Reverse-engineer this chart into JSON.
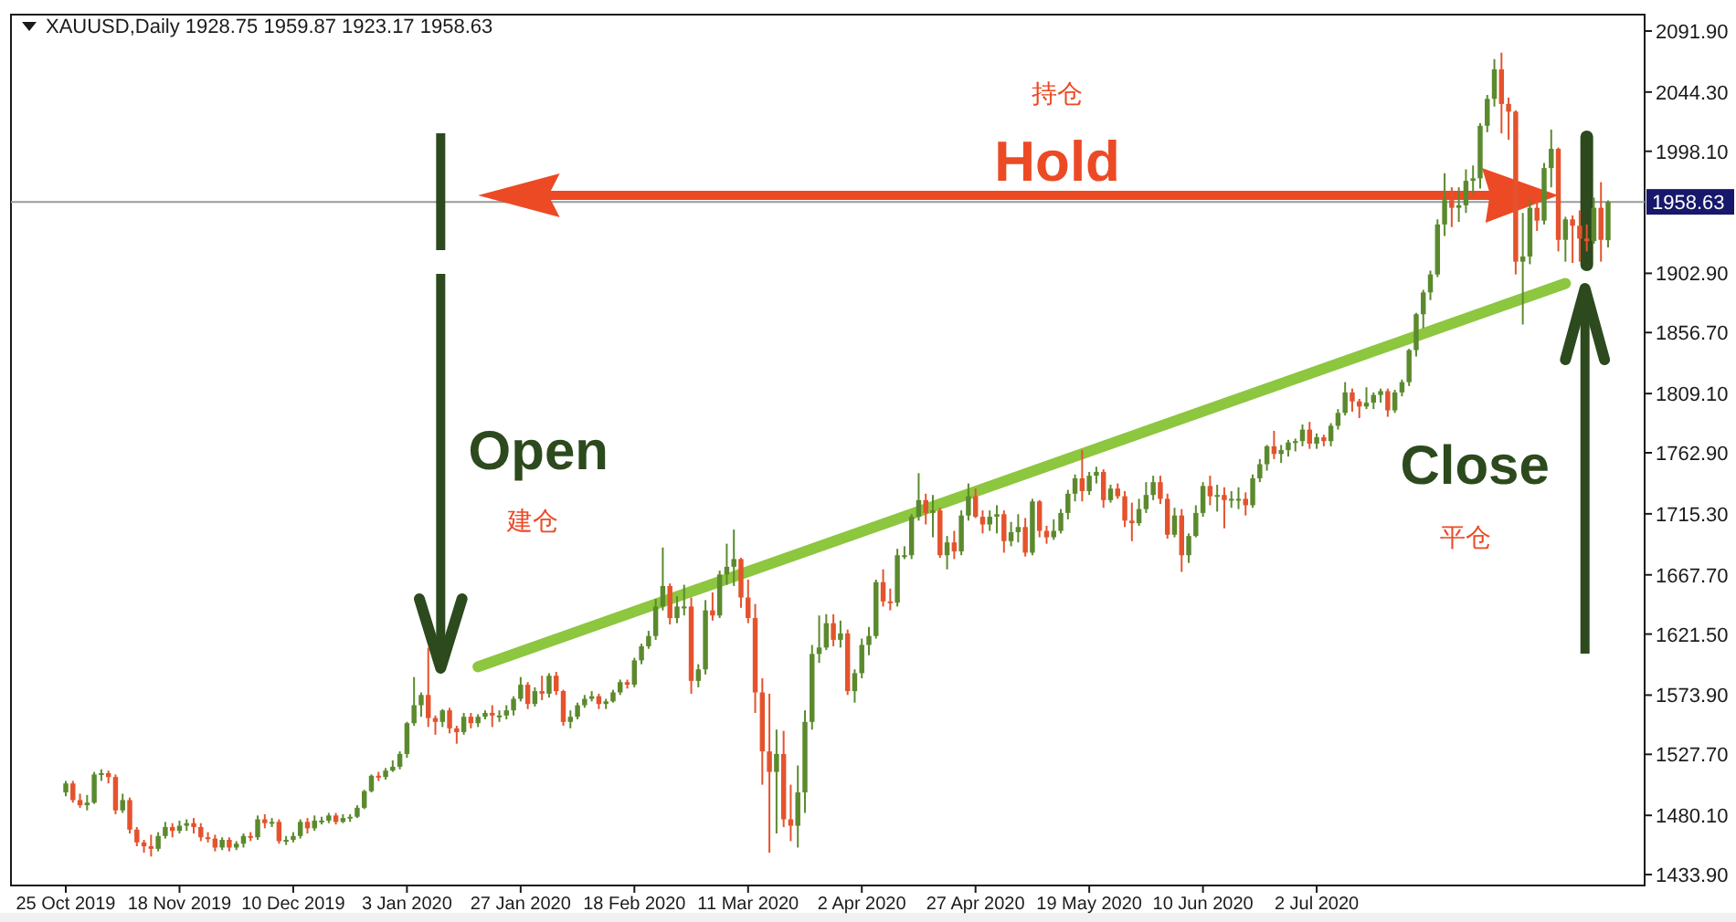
{
  "chart_data": {
    "type": "candlestick",
    "title": "XAUUSD,Daily  1928.75 1959.87 1923.17 1958.63",
    "categories": [
      "25 Oct 2019",
      null,
      null,
      null,
      null,
      null,
      null,
      null,
      null,
      null,
      null,
      null,
      null,
      null,
      null,
      null,
      "18 Nov 2019",
      null,
      null,
      null,
      null,
      null,
      null,
      null,
      null,
      null,
      null,
      null,
      null,
      null,
      null,
      null,
      "10 Dec 2019",
      null,
      null,
      null,
      null,
      null,
      null,
      null,
      null,
      null,
      null,
      null,
      null,
      null,
      null,
      null,
      "3 Jan 2020",
      null,
      null,
      null,
      null,
      null,
      null,
      null,
      null,
      null,
      null,
      null,
      null,
      null,
      null,
      null,
      "27 Jan 2020",
      null,
      null,
      null,
      null,
      null,
      null,
      null,
      null,
      null,
      null,
      null,
      null,
      null,
      null,
      null,
      "18 Feb 2020",
      null,
      null,
      null,
      null,
      null,
      null,
      null,
      null,
      null,
      null,
      null,
      null,
      null,
      null,
      null,
      "11 Mar 2020",
      null,
      null,
      null,
      null,
      null,
      null,
      null,
      null,
      null,
      null,
      null,
      null,
      null,
      null,
      null,
      "2 Apr 2020",
      null,
      null,
      null,
      null,
      null,
      null,
      null,
      null,
      null,
      null,
      null,
      null,
      null,
      null,
      null,
      "27 Apr 2020",
      null,
      null,
      null,
      null,
      null,
      null,
      null,
      null,
      null,
      null,
      null,
      null,
      null,
      null,
      null,
      "19 May 2020",
      null,
      null,
      null,
      null,
      null,
      null,
      null,
      null,
      null,
      null,
      null,
      null,
      null,
      null,
      null,
      "10 Jun 2020",
      null,
      null,
      null,
      null,
      null,
      null,
      null,
      null,
      null,
      null,
      null,
      null,
      null,
      null,
      null,
      "2 Jul 2020",
      null,
      null,
      null,
      null,
      null,
      null,
      null,
      null,
      null,
      null,
      null,
      null,
      null,
      null,
      null,
      null,
      null,
      null,
      null,
      null,
      null,
      null,
      null,
      null,
      null,
      null,
      null,
      null,
      null,
      null,
      null,
      null,
      null,
      null,
      null,
      null,
      null,
      null,
      null,
      null,
      null
    ],
    "ohlc": [
      [
        1498,
        1507,
        1495,
        1505
      ],
      [
        1505,
        1507,
        1490,
        1492
      ],
      [
        1492,
        1497,
        1486,
        1488
      ],
      [
        1488,
        1496,
        1484,
        1490
      ],
      [
        1490,
        1514,
        1489,
        1512
      ],
      [
        1512,
        1516,
        1507,
        1513
      ],
      [
        1513,
        1515,
        1505,
        1510
      ],
      [
        1510,
        1512,
        1481,
        1484
      ],
      [
        1484,
        1497,
        1482,
        1492
      ],
      [
        1492,
        1494,
        1466,
        1469
      ],
      [
        1469,
        1471,
        1456,
        1459
      ],
      [
        1459,
        1461,
        1451,
        1456
      ],
      [
        1456,
        1465,
        1448,
        1454
      ],
      [
        1454,
        1467,
        1452,
        1464
      ],
      [
        1464,
        1475,
        1462,
        1471
      ],
      [
        1471,
        1474,
        1463,
        1468
      ],
      [
        1468,
        1476,
        1466,
        1472
      ],
      [
        1472,
        1477,
        1468,
        1474
      ],
      [
        1474,
        1478,
        1466,
        1471
      ],
      [
        1471,
        1474,
        1460,
        1463
      ],
      [
        1463,
        1467,
        1459,
        1462
      ],
      [
        1462,
        1465,
        1452,
        1455
      ],
      [
        1455,
        1463,
        1453,
        1461
      ],
      [
        1461,
        1463,
        1452,
        1455
      ],
      [
        1455,
        1460,
        1453,
        1458
      ],
      [
        1458,
        1466,
        1455,
        1464
      ],
      [
        1464,
        1467,
        1460,
        1463
      ],
      [
        1463,
        1480,
        1461,
        1477
      ],
      [
        1477,
        1481,
        1470,
        1474
      ],
      [
        1474,
        1478,
        1471,
        1475
      ],
      [
        1475,
        1477,
        1458,
        1460
      ],
      [
        1460,
        1464,
        1457,
        1461
      ],
      [
        1461,
        1467,
        1459,
        1464
      ],
      [
        1464,
        1477,
        1462,
        1475
      ],
      [
        1475,
        1478,
        1466,
        1470
      ],
      [
        1470,
        1480,
        1468,
        1476
      ],
      [
        1476,
        1479,
        1473,
        1476
      ],
      [
        1476,
        1482,
        1474,
        1480
      ],
      [
        1480,
        1482,
        1473,
        1475
      ],
      [
        1475,
        1481,
        1474,
        1478
      ],
      [
        1478,
        1481,
        1475,
        1479
      ],
      [
        1479,
        1488,
        1478,
        1486
      ],
      [
        1486,
        1500,
        1485,
        1499
      ],
      [
        1499,
        1512,
        1498,
        1511
      ],
      [
        1511,
        1514,
        1507,
        1510
      ],
      [
        1510,
        1517,
        1508,
        1515
      ],
      [
        1515,
        1523,
        1514,
        1518
      ],
      [
        1518,
        1530,
        1516,
        1528
      ],
      [
        1528,
        1553,
        1525,
        1552
      ],
      [
        1552,
        1588,
        1550,
        1566
      ],
      [
        1566,
        1576,
        1557,
        1574
      ],
      [
        1574,
        1611,
        1549,
        1556
      ],
      [
        1556,
        1558,
        1543,
        1553
      ],
      [
        1553,
        1563,
        1549,
        1562
      ],
      [
        1562,
        1564,
        1544,
        1548
      ],
      [
        1548,
        1550,
        1536,
        1545
      ],
      [
        1545,
        1560,
        1543,
        1557
      ],
      [
        1557,
        1560,
        1548,
        1552
      ],
      [
        1552,
        1559,
        1549,
        1557
      ],
      [
        1557,
        1562,
        1555,
        1560
      ],
      [
        1560,
        1566,
        1549,
        1558
      ],
      [
        1558,
        1562,
        1553,
        1558
      ],
      [
        1558,
        1566,
        1555,
        1562
      ],
      [
        1562,
        1573,
        1558,
        1571
      ],
      [
        1571,
        1588,
        1569,
        1582
      ],
      [
        1582,
        1584,
        1563,
        1567
      ],
      [
        1567,
        1580,
        1565,
        1577
      ],
      [
        1577,
        1589,
        1570,
        1575
      ],
      [
        1575,
        1591,
        1572,
        1589
      ],
      [
        1589,
        1592,
        1574,
        1577
      ],
      [
        1577,
        1578,
        1550,
        1553
      ],
      [
        1553,
        1562,
        1548,
        1557
      ],
      [
        1557,
        1568,
        1555,
        1566
      ],
      [
        1566,
        1574,
        1564,
        1571
      ],
      [
        1571,
        1577,
        1569,
        1573
      ],
      [
        1573,
        1575,
        1563,
        1567
      ],
      [
        1567,
        1571,
        1563,
        1569
      ],
      [
        1569,
        1578,
        1568,
        1576
      ],
      [
        1576,
        1586,
        1574,
        1584
      ],
      [
        1584,
        1586,
        1579,
        1582
      ],
      [
        1582,
        1603,
        1580,
        1601
      ],
      [
        1601,
        1614,
        1598,
        1612
      ],
      [
        1612,
        1624,
        1610,
        1620
      ],
      [
        1620,
        1649,
        1617,
        1643
      ],
      [
        1643,
        1689,
        1640,
        1659
      ],
      [
        1659,
        1661,
        1629,
        1634
      ],
      [
        1634,
        1651,
        1630,
        1643
      ],
      [
        1643,
        1660,
        1636,
        1643
      ],
      [
        1643,
        1650,
        1575,
        1585
      ],
      [
        1585,
        1598,
        1580,
        1594
      ],
      [
        1594,
        1648,
        1590,
        1640
      ],
      [
        1640,
        1654,
        1632,
        1636
      ],
      [
        1636,
        1671,
        1634,
        1668
      ],
      [
        1668,
        1692,
        1660,
        1674
      ],
      [
        1674,
        1703,
        1659,
        1680
      ],
      [
        1680,
        1681,
        1642,
        1650
      ],
      [
        1650,
        1664,
        1630,
        1634
      ],
      [
        1634,
        1645,
        1560,
        1576
      ],
      [
        1576,
        1587,
        1504,
        1530
      ],
      [
        1530,
        1575,
        1451,
        1514
      ],
      [
        1514,
        1547,
        1466,
        1528
      ],
      [
        1528,
        1546,
        1471,
        1477
      ],
      [
        1477,
        1504,
        1460,
        1472
      ],
      [
        1472,
        1519,
        1455,
        1498
      ],
      [
        1498,
        1562,
        1482,
        1553
      ],
      [
        1553,
        1613,
        1547,
        1606
      ],
      [
        1606,
        1636,
        1599,
        1611
      ],
      [
        1611,
        1637,
        1609,
        1630
      ],
      [
        1630,
        1637,
        1612,
        1617
      ],
      [
        1617,
        1632,
        1611,
        1622
      ],
      [
        1622,
        1625,
        1574,
        1577
      ],
      [
        1577,
        1594,
        1568,
        1591
      ],
      [
        1591,
        1618,
        1587,
        1613
      ],
      [
        1613,
        1627,
        1605,
        1620
      ],
      [
        1620,
        1664,
        1618,
        1662
      ],
      [
        1662,
        1672,
        1643,
        1647
      ],
      [
        1647,
        1657,
        1640,
        1646
      ],
      [
        1646,
        1688,
        1643,
        1683
      ],
      [
        1683,
        1690,
        1680,
        1683
      ],
      [
        1683,
        1715,
        1680,
        1713
      ],
      [
        1713,
        1747,
        1710,
        1726
      ],
      [
        1726,
        1731,
        1707,
        1716
      ],
      [
        1716,
        1730,
        1697,
        1718
      ],
      [
        1718,
        1720,
        1681,
        1683
      ],
      [
        1683,
        1698,
        1672,
        1693
      ],
      [
        1693,
        1702,
        1680,
        1686
      ],
      [
        1686,
        1718,
        1683,
        1714
      ],
      [
        1714,
        1739,
        1710,
        1729
      ],
      [
        1729,
        1735,
        1712,
        1713
      ],
      [
        1713,
        1718,
        1700,
        1707
      ],
      [
        1707,
        1718,
        1702,
        1713
      ],
      [
        1713,
        1722,
        1700,
        1715
      ],
      [
        1715,
        1718,
        1685,
        1694
      ],
      [
        1694,
        1709,
        1690,
        1701
      ],
      [
        1701,
        1715,
        1693,
        1705
      ],
      [
        1705,
        1712,
        1682,
        1685
      ],
      [
        1685,
        1727,
        1683,
        1725
      ],
      [
        1725,
        1726,
        1697,
        1702
      ],
      [
        1702,
        1706,
        1692,
        1697
      ],
      [
        1697,
        1711,
        1695,
        1702
      ],
      [
        1702,
        1719,
        1700,
        1716
      ],
      [
        1716,
        1734,
        1711,
        1731
      ],
      [
        1731,
        1746,
        1725,
        1743
      ],
      [
        1743,
        1765,
        1725,
        1733
      ],
      [
        1733,
        1748,
        1730,
        1745
      ],
      [
        1745,
        1752,
        1739,
        1748
      ],
      [
        1748,
        1750,
        1720,
        1726
      ],
      [
        1726,
        1738,
        1724,
        1735
      ],
      [
        1735,
        1739,
        1727,
        1729
      ],
      [
        1729,
        1733,
        1705,
        1710
      ],
      [
        1710,
        1724,
        1694,
        1708
      ],
      [
        1708,
        1727,
        1706,
        1719
      ],
      [
        1719,
        1740,
        1716,
        1730
      ],
      [
        1730,
        1745,
        1726,
        1740
      ],
      [
        1740,
        1745,
        1723,
        1727
      ],
      [
        1727,
        1731,
        1696,
        1699
      ],
      [
        1699,
        1720,
        1697,
        1714
      ],
      [
        1714,
        1719,
        1670,
        1683
      ],
      [
        1683,
        1700,
        1677,
        1698
      ],
      [
        1698,
        1722,
        1697,
        1716
      ],
      [
        1716,
        1740,
        1713,
        1737
      ],
      [
        1737,
        1745,
        1722,
        1729
      ],
      [
        1729,
        1738,
        1717,
        1730
      ],
      [
        1730,
        1736,
        1704,
        1726
      ],
      [
        1726,
        1733,
        1720,
        1727
      ],
      [
        1727,
        1736,
        1719,
        1727
      ],
      [
        1727,
        1732,
        1714,
        1722
      ],
      [
        1722,
        1746,
        1720,
        1743
      ],
      [
        1743,
        1758,
        1740,
        1754
      ],
      [
        1754,
        1769,
        1749,
        1768
      ],
      [
        1768,
        1780,
        1758,
        1762
      ],
      [
        1762,
        1769,
        1755,
        1765
      ],
      [
        1765,
        1773,
        1760,
        1771
      ],
      [
        1771,
        1774,
        1764,
        1772
      ],
      [
        1772,
        1785,
        1768,
        1781
      ],
      [
        1781,
        1787,
        1766,
        1770
      ],
      [
        1770,
        1778,
        1766,
        1775
      ],
      [
        1775,
        1777,
        1768,
        1772
      ],
      [
        1772,
        1786,
        1768,
        1784
      ],
      [
        1784,
        1797,
        1781,
        1794
      ],
      [
        1794,
        1818,
        1792,
        1810
      ],
      [
        1810,
        1813,
        1795,
        1803
      ],
      [
        1803,
        1805,
        1790,
        1799
      ],
      [
        1799,
        1814,
        1797,
        1802
      ],
      [
        1802,
        1810,
        1797,
        1808
      ],
      [
        1808,
        1813,
        1802,
        1811
      ],
      [
        1811,
        1813,
        1791,
        1796
      ],
      [
        1796,
        1812,
        1794,
        1810
      ],
      [
        1810,
        1820,
        1807,
        1818
      ],
      [
        1818,
        1844,
        1815,
        1843
      ],
      [
        1843,
        1872,
        1838,
        1871
      ],
      [
        1871,
        1890,
        1860,
        1888
      ],
      [
        1888,
        1905,
        1882,
        1902
      ],
      [
        1902,
        1945,
        1900,
        1941
      ],
      [
        1941,
        1981,
        1932,
        1960
      ],
      [
        1960,
        1970,
        1939,
        1954
      ],
      [
        1954,
        1970,
        1943,
        1956
      ],
      [
        1956,
        1984,
        1950,
        1975
      ],
      [
        1975,
        1987,
        1965,
        1977
      ],
      [
        1977,
        2020,
        1969,
        2018
      ],
      [
        2018,
        2042,
        2013,
        2039
      ],
      [
        2039,
        2070,
        2033,
        2062
      ],
      [
        2062,
        2075,
        2012,
        2035
      ],
      [
        2035,
        2040,
        2007,
        2029
      ],
      [
        2029,
        2030,
        1902,
        1912
      ],
      [
        1912,
        1950,
        1863,
        1916
      ],
      [
        1916,
        1960,
        1910,
        1954
      ],
      [
        1954,
        1960,
        1936,
        1944
      ],
      [
        1944,
        1989,
        1941,
        1985
      ],
      [
        1985,
        2015,
        1970,
        2000
      ],
      [
        2000,
        2001,
        1920,
        1929
      ],
      [
        1929,
        1947,
        1912,
        1945
      ],
      [
        1945,
        1948,
        1911,
        1940
      ],
      [
        1940,
        1952,
        1912,
        1930
      ],
      [
        1930,
        1941,
        1920,
        1928
      ],
      [
        1928,
        1962,
        1926,
        1954
      ],
      [
        1954,
        1974,
        1912,
        1929
      ],
      [
        1928.75,
        1959.87,
        1923.17,
        1958.63
      ]
    ],
    "colors": [
      "#5b8a2e",
      "#e4532d",
      "#e4532d",
      "#5b8a2e",
      "#5b8a2e",
      "#5b8a2e",
      "#e4532d",
      "#e4532d",
      "#5b8a2e",
      "#e4532d",
      "#e4532d",
      "#e4532d",
      "#e4532d",
      "#5b8a2e",
      "#5b8a2e",
      "#e4532d",
      "#5b8a2e",
      "#5b8a2e",
      "#e4532d",
      "#e4532d",
      "#e4532d",
      "#e4532d",
      "#5b8a2e",
      "#e4532d",
      "#5b8a2e",
      "#5b8a2e",
      "#e4532d",
      "#5b8a2e",
      "#e4532d",
      "#5b8a2e",
      "#e4532d",
      "#5b8a2e",
      "#5b8a2e",
      "#5b8a2e",
      "#e4532d",
      "#5b8a2e",
      "#5b8a2e",
      "#5b8a2e",
      "#e4532d",
      "#5b8a2e",
      "#5b8a2e",
      "#5b8a2e",
      "#5b8a2e",
      "#5b8a2e",
      "#e4532d",
      "#5b8a2e",
      "#5b8a2e",
      "#5b8a2e",
      "#5b8a2e",
      "#5b8a2e",
      "#5b8a2e",
      "#e4532d",
      "#e4532d",
      "#5b8a2e",
      "#e4532d",
      "#e4532d",
      "#5b8a2e",
      "#e4532d",
      "#5b8a2e",
      "#5b8a2e",
      "#e4532d",
      "#5b8a2e",
      "#5b8a2e",
      "#5b8a2e",
      "#5b8a2e",
      "#e4532d",
      "#5b8a2e",
      "#e4532d",
      "#5b8a2e",
      "#e4532d",
      "#e4532d",
      "#5b8a2e",
      "#5b8a2e",
      "#5b8a2e",
      "#5b8a2e",
      "#e4532d",
      "#5b8a2e",
      "#5b8a2e",
      "#5b8a2e",
      "#e4532d",
      "#5b8a2e",
      "#5b8a2e",
      "#5b8a2e",
      "#5b8a2e",
      "#5b8a2e",
      "#e4532d",
      "#5b8a2e",
      "#5b8a2e",
      "#e4532d",
      "#5b8a2e",
      "#5b8a2e",
      "#e4532d",
      "#5b8a2e",
      "#5b8a2e",
      "#5b8a2e",
      "#e4532d",
      "#e4532d",
      "#e4532d",
      "#e4532d",
      "#e4532d",
      "#5b8a2e",
      "#e4532d",
      "#e4532d",
      "#5b8a2e",
      "#5b8a2e",
      "#5b8a2e",
      "#5b8a2e",
      "#5b8a2e",
      "#e4532d",
      "#5b8a2e",
      "#e4532d",
      "#5b8a2e",
      "#5b8a2e",
      "#5b8a2e",
      "#5b8a2e",
      "#e4532d",
      "#e4532d",
      "#5b8a2e",
      "#5b8a2e",
      "#5b8a2e",
      "#5b8a2e",
      "#e4532d",
      "#5b8a2e",
      "#e4532d",
      "#5b8a2e",
      "#e4532d",
      "#5b8a2e",
      "#5b8a2e",
      "#e4532d",
      "#e4532d",
      "#5b8a2e",
      "#5b8a2e",
      "#e4532d",
      "#5b8a2e",
      "#5b8a2e",
      "#e4532d",
      "#5b8a2e",
      "#e4532d",
      "#e4532d",
      "#5b8a2e",
      "#5b8a2e",
      "#5b8a2e",
      "#5b8a2e",
      "#e4532d",
      "#5b8a2e",
      "#5b8a2e",
      "#e4532d",
      "#5b8a2e",
      "#e4532d",
      "#e4532d",
      "#e4532d",
      "#5b8a2e",
      "#5b8a2e",
      "#5b8a2e",
      "#e4532d",
      "#e4532d",
      "#5b8a2e",
      "#e4532d",
      "#5b8a2e",
      "#5b8a2e",
      "#5b8a2e",
      "#e4532d",
      "#5b8a2e",
      "#e4532d",
      "#5b8a2e",
      "#5b8a2e",
      "#e4532d",
      "#5b8a2e",
      "#5b8a2e",
      "#5b8a2e",
      "#e4532d",
      "#5b8a2e",
      "#5b8a2e",
      "#5b8a2e",
      "#5b8a2e",
      "#e4532d",
      "#5b8a2e",
      "#e4532d",
      "#5b8a2e",
      "#5b8a2e",
      "#5b8a2e",
      "#e4532d",
      "#e4532d",
      "#5b8a2e",
      "#5b8a2e",
      "#5b8a2e",
      "#e4532d",
      "#5b8a2e",
      "#5b8a2e",
      "#5b8a2e",
      "#5b8a2e",
      "#5b8a2e",
      "#5b8a2e",
      "#5b8a2e",
      "#5b8a2e",
      "#e4532d",
      "#5b8a2e",
      "#5b8a2e",
      "#5b8a2e",
      "#5b8a2e",
      "#5b8a2e",
      "#5b8a2e",
      "#e4532d",
      "#e4532d",
      "#e4532d",
      "#5b8a2e",
      "#5b8a2e",
      "#e4532d",
      "#5b8a2e",
      "#5b8a2e",
      "#e4532d",
      "#5b8a2e",
      "#e4532d",
      "#e4532d",
      "#e4532d",
      "#5b8a2e",
      "#e4532d",
      "#5b8a2e"
    ],
    "series": [
      {
        "type": "line",
        "color": "#8dc63f",
        "values": [
          null,
          null,
          null,
          null,
          null,
          null,
          null,
          null,
          null,
          null,
          null,
          null,
          null,
          null,
          null,
          null,
          null,
          null,
          null,
          null,
          null,
          null,
          null,
          null,
          null,
          null,
          null,
          null,
          null,
          null,
          null,
          null,
          null,
          null,
          null,
          null,
          null,
          null,
          null,
          null,
          null,
          null,
          null,
          null,
          null,
          null,
          null,
          null,
          null,
          null,
          null,
          null,
          null,
          null,
          null,
          null,
          null,
          null,
          1596,
          null,
          null,
          null,
          null,
          null,
          null,
          null,
          null,
          null,
          null,
          null,
          null,
          null,
          null,
          null,
          null,
          null,
          null,
          null,
          null,
          null,
          null,
          null,
          null,
          null,
          null,
          null,
          null,
          null,
          null,
          null,
          null,
          null,
          null,
          null,
          null,
          null,
          null,
          null,
          null,
          null,
          null,
          null,
          null,
          null,
          null,
          null,
          null,
          null,
          null,
          null,
          null,
          null,
          null,
          null,
          null,
          null,
          null,
          null,
          null,
          null,
          null,
          null,
          null,
          null,
          null,
          null,
          null,
          null,
          null,
          null,
          null,
          null,
          null,
          null,
          null,
          null,
          null,
          null,
          null,
          null,
          null,
          null,
          null,
          null,
          null,
          null,
          null,
          null,
          null,
          null,
          null,
          null,
          null,
          null,
          null,
          null,
          null,
          null,
          null,
          null,
          null,
          null,
          null,
          null,
          null,
          null,
          null,
          null,
          null,
          null,
          null,
          null,
          null,
          null,
          null,
          null,
          null,
          null,
          null,
          null,
          null,
          null,
          null,
          null,
          null,
          null,
          null,
          null,
          null,
          null,
          null,
          null,
          null,
          null,
          null,
          null,
          null,
          null,
          null,
          null,
          null,
          null,
          null,
          null,
          null,
          null,
          null,
          null,
          null,
          null,
          null,
          1895,
          null,
          null,
          null,
          null,
          null,
          null
        ]
      }
    ],
    "ylim": [
      1425.4,
      2104.7
    ],
    "yticks": [
      {
        "value": 1433.9,
        "label": "1433.90"
      },
      {
        "value": 1480.1,
        "label": "1480.10"
      },
      {
        "value": 1527.7,
        "label": "1527.70"
      },
      {
        "value": 1573.9,
        "label": "1573.90"
      },
      {
        "value": 1621.5,
        "label": "1621.50"
      },
      {
        "value": 1667.7,
        "label": "1667.70"
      },
      {
        "value": 1715.3,
        "label": "1715.30"
      },
      {
        "value": 1762.9,
        "label": "1762.90"
      },
      {
        "value": 1809.1,
        "label": "1809.10"
      },
      {
        "value": 1856.7,
        "label": "1856.70"
      },
      {
        "value": 1902.9,
        "label": "1902.90"
      },
      {
        "value": 1998.1,
        "label": "1998.10"
      },
      {
        "value": 2044.3,
        "label": "2044.30"
      },
      {
        "value": 2091.9,
        "label": "2091.90"
      }
    ],
    "ref_lines": [
      {
        "axis": "y",
        "value": 1958.63,
        "label": "1958.63",
        "color": "#9a9a9a"
      }
    ],
    "annotations": [
      "持仓",
      "Hold",
      "Open",
      "建仓",
      "Close",
      "平仓"
    ]
  }
}
